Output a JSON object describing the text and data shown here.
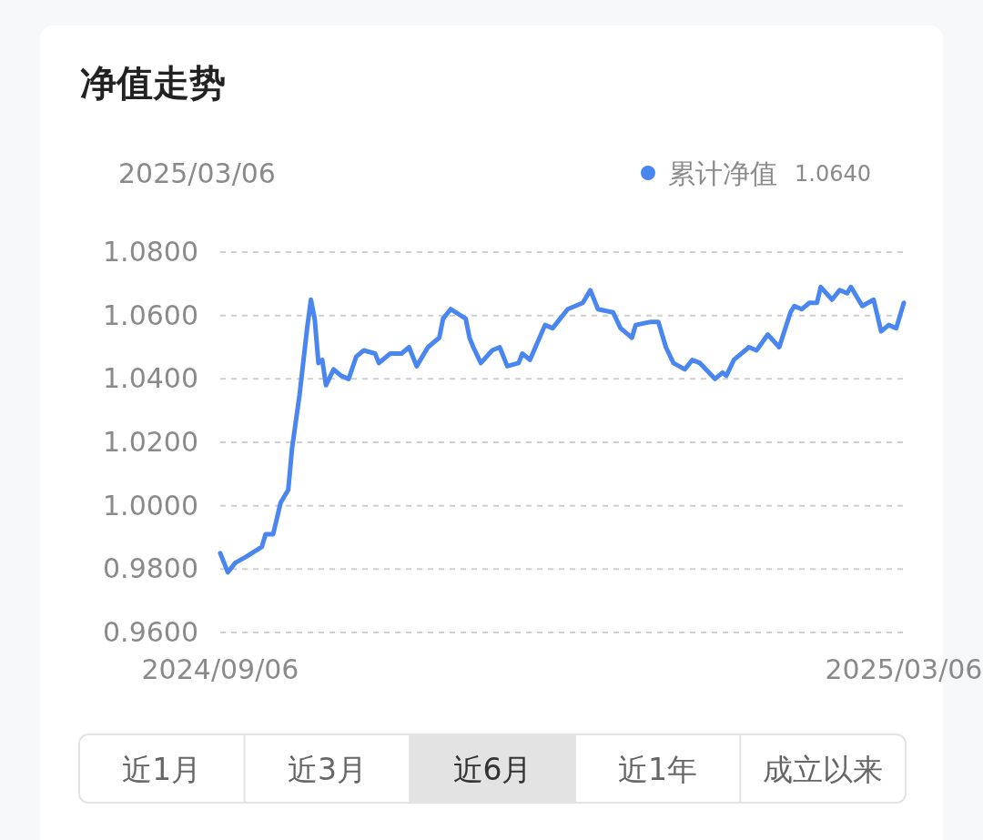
{
  "chart_data": {
    "type": "line",
    "title": "净值走势",
    "annotations": [
      "2025/03/06",
      "1.0640",
      "近1月",
      "近3月",
      "近6月",
      "近1年",
      "成立以来"
    ],
    "x": [
      "2024-09-06",
      "2024-09-08",
      "2024-09-10",
      "2024-09-13",
      "2024-09-17",
      "2024-09-18",
      "2024-09-20",
      "2024-09-22",
      "2024-09-24",
      "2024-09-25",
      "2024-09-27",
      "2024-09-29",
      "2024-09-30",
      "2024-10-01",
      "2024-10-02",
      "2024-10-03",
      "2024-10-04",
      "2024-10-06",
      "2024-10-08",
      "2024-10-10",
      "2024-10-12",
      "2024-10-14",
      "2024-10-17",
      "2024-10-18",
      "2024-10-21",
      "2024-10-24",
      "2024-10-26",
      "2024-10-28",
      "2024-10-31",
      "2024-11-02",
      "2024-11-03",
      "2024-11-04",
      "2024-11-06",
      "2024-11-10",
      "2024-11-11",
      "2024-11-12",
      "2024-11-14",
      "2024-11-17",
      "2024-11-19",
      "2024-11-21",
      "2024-11-24",
      "2024-11-25",
      "2024-11-27",
      "2024-12-01",
      "2024-12-03",
      "2024-12-07",
      "2024-12-11",
      "2024-12-13",
      "2024-12-15",
      "2024-12-19",
      "2024-12-21",
      "2024-12-24",
      "2024-12-25",
      "2024-12-29",
      "2024-12-31",
      "2025-01-02",
      "2025-01-04",
      "2025-01-07",
      "2025-01-09",
      "2025-01-11",
      "2025-01-15",
      "2025-01-17",
      "2025-01-18",
      "2025-01-20",
      "2025-01-21",
      "2025-01-24",
      "2025-01-26",
      "2025-01-29",
      "2025-02-01",
      "2025-02-04",
      "2025-02-05",
      "2025-02-07",
      "2025-02-09",
      "2025-02-11",
      "2025-02-12",
      "2025-02-15",
      "2025-02-17",
      "2025-02-19",
      "2025-02-20",
      "2025-02-23",
      "2025-02-26",
      "2025-02-28",
      "2025-03-02",
      "2025-03-04",
      "2025-03-06"
    ],
    "series": [
      {
        "name": "累计净值",
        "color": "#4a86ef",
        "values": [
          0.985,
          0.979,
          0.982,
          0.984,
          0.987,
          0.991,
          0.991,
          1.001,
          1.005,
          1.018,
          1.035,
          1.056,
          1.065,
          1.059,
          1.045,
          1.046,
          1.038,
          1.043,
          1.041,
          1.04,
          1.047,
          1.049,
          1.048,
          1.045,
          1.048,
          1.048,
          1.05,
          1.044,
          1.05,
          1.052,
          1.053,
          1.059,
          1.062,
          1.059,
          1.053,
          1.05,
          1.045,
          1.049,
          1.05,
          1.044,
          1.045,
          1.048,
          1.046,
          1.057,
          1.056,
          1.062,
          1.064,
          1.068,
          1.062,
          1.061,
          1.056,
          1.053,
          1.057,
          1.058,
          1.058,
          1.05,
          1.045,
          1.043,
          1.046,
          1.045,
          1.04,
          1.042,
          1.041,
          1.046,
          1.047,
          1.05,
          1.049,
          1.054,
          1.05,
          1.061,
          1.063,
          1.062,
          1.064,
          1.064,
          1.069,
          1.065,
          1.068,
          1.067,
          1.069,
          1.063,
          1.065,
          1.055,
          1.057,
          1.056,
          1.064
        ]
      }
    ],
    "xlim": [
      "2024-09-06",
      "2025-03-06"
    ],
    "xticks": [
      {
        "value": "2024-09-06",
        "label": "2024/09/06"
      },
      {
        "value": "2025-03-06",
        "label": "2025/03/06"
      }
    ],
    "ylim": [
      0.96,
      1.08
    ],
    "yticks": [
      {
        "value": 0.96,
        "label": "0.9600"
      },
      {
        "value": 0.98,
        "label": "0.9800"
      },
      {
        "value": 1.0,
        "label": "1.0000"
      },
      {
        "value": 1.02,
        "label": "1.0200"
      },
      {
        "value": 1.04,
        "label": "1.0400"
      },
      {
        "value": 1.06,
        "label": "1.0600"
      },
      {
        "value": 1.08,
        "label": "1.0800"
      }
    ],
    "grid": "y",
    "legend": "top right",
    "line_style": "solid"
  }
}
